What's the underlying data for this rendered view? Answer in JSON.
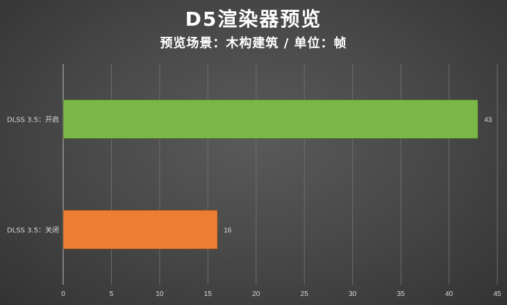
{
  "chart_data": {
    "type": "bar",
    "orientation": "horizontal",
    "title": "D5渲染器预览",
    "subtitle": "预览场景：木构建筑 / 单位：帧",
    "categories": [
      "DLSS 3.5：开启",
      "DLSS 3.5：关闭"
    ],
    "values": [
      43,
      16
    ],
    "colors": [
      "#7ab648",
      "#ed7d31"
    ],
    "xlim": [
      0,
      45
    ],
    "xticks": [
      0,
      5,
      10,
      15,
      20,
      25,
      30,
      35,
      40,
      45
    ],
    "grid": true,
    "data_labels": true
  },
  "colors": {
    "gridline": "#6e6e6e",
    "axis": "#bfbfbf",
    "text": "#d9d9d9"
  }
}
